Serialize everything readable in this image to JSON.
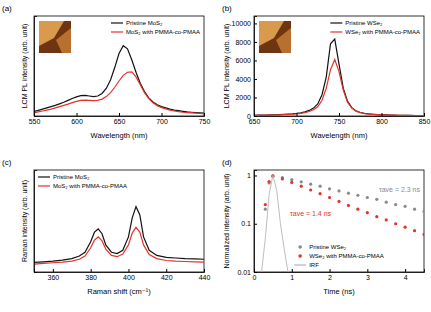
{
  "chart_data": [
    {
      "type": "line",
      "title": "(a)",
      "x_label": "Wavelength (nm)",
      "y_label": "LCM PL intensity (arb. unit)",
      "x": [
        550,
        555,
        560,
        565,
        570,
        575,
        580,
        585,
        590,
        595,
        600,
        605,
        610,
        615,
        620,
        625,
        630,
        635,
        640,
        645,
        650,
        655,
        660,
        665,
        670,
        675,
        680,
        685,
        690,
        695,
        700,
        705,
        710,
        715,
        720,
        725,
        730,
        735,
        740,
        745,
        750
      ],
      "series": [
        {
          "name": "Pristine MoS₂",
          "color": "#111111",
          "values": [
            15,
            18,
            22,
            26,
            30,
            34,
            39,
            44,
            50,
            56,
            61,
            65,
            66,
            64,
            62,
            64,
            72,
            88,
            115,
            155,
            200,
            225,
            215,
            180,
            140,
            105,
            78,
            58,
            45,
            36,
            30,
            26,
            22,
            19,
            17,
            15,
            13,
            12,
            11,
            10,
            9
          ]
        },
        {
          "name": "MoS₂ with PMMA-co-PMAA",
          "color": "#e5332a",
          "values": [
            10,
            13,
            16,
            19,
            22,
            26,
            30,
            34,
            38,
            43,
            47,
            50,
            51,
            50,
            49,
            50,
            54,
            62,
            75,
            92,
            112,
            130,
            140,
            141,
            125,
            100,
            75,
            56,
            42,
            33,
            27,
            23,
            19,
            16,
            14,
            12,
            11,
            10,
            9,
            8,
            7
          ]
        }
      ],
      "xlim": [
        550,
        750
      ],
      "xticks": [
        550,
        600,
        650,
        700,
        750
      ],
      "ylim": [
        0,
        320
      ],
      "tick_labels": "x",
      "legend": "upper right"
    },
    {
      "type": "line",
      "title": "(b)",
      "x_label": "Wavelength (nm)",
      "y_label": "LCM PL intensity (arb. unit)",
      "x": [
        650,
        655,
        660,
        665,
        670,
        675,
        680,
        685,
        690,
        695,
        700,
        705,
        710,
        715,
        720,
        725,
        730,
        735,
        740,
        745,
        750,
        755,
        760,
        765,
        770,
        775,
        780,
        785,
        790,
        795,
        800,
        805,
        810,
        815,
        820,
        825,
        830,
        835,
        840,
        845,
        850
      ],
      "series": [
        {
          "name": "Pristine WSe₂",
          "color": "#111111",
          "values": [
            80,
            90,
            100,
            110,
            120,
            135,
            150,
            170,
            195,
            230,
            280,
            350,
            450,
            600,
            850,
            1300,
            2300,
            4200,
            7800,
            8300,
            5600,
            3000,
            1600,
            900,
            550,
            380,
            280,
            220,
            180,
            150,
            130,
            115,
            100,
            90,
            80,
            70,
            65,
            60,
            55,
            50,
            45
          ]
        },
        {
          "name": "WSe₂ with PMMA-co-PMAA",
          "color": "#e5332a",
          "values": [
            60,
            70,
            80,
            90,
            100,
            110,
            125,
            140,
            160,
            190,
            230,
            290,
            370,
            490,
            680,
            1000,
            1700,
            3000,
            5000,
            6100,
            4800,
            2800,
            1500,
            850,
            520,
            360,
            260,
            200,
            165,
            140,
            120,
            105,
            92,
            82,
            72,
            65,
            58,
            53,
            48,
            44,
            40
          ]
        }
      ],
      "xlim": [
        650,
        850
      ],
      "xticks": [
        650,
        700,
        750,
        800,
        850
      ],
      "ylim": [
        0,
        10800
      ],
      "yticks": [
        0,
        2000,
        4000,
        6000,
        8000,
        10000
      ],
      "legend": "upper right"
    },
    {
      "type": "line",
      "title": "(c)",
      "x_label": "Raman shift (cm⁻¹)",
      "y_label": "Raman intensity (arb. unit)",
      "x": [
        350,
        355,
        360,
        365,
        370,
        374,
        377,
        380,
        382,
        384,
        386,
        388,
        391,
        394,
        397,
        400,
        402,
        404,
        406,
        408,
        411,
        415,
        420,
        425,
        430,
        435,
        440
      ],
      "series": [
        {
          "name": "Pristine MoS₂",
          "color": "#111111",
          "values": [
            30,
            32,
            34,
            37,
            42,
            50,
            62,
            95,
            125,
            135,
            120,
            85,
            62,
            58,
            68,
            110,
            170,
            205,
            180,
            110,
            68,
            52,
            46,
            44,
            42,
            41,
            40
          ]
        },
        {
          "name": "MoS₂ with PMMA-co-PMAA",
          "color": "#e5332a",
          "values": [
            25,
            27,
            29,
            31,
            34,
            40,
            50,
            76,
            100,
            110,
            98,
            72,
            52,
            48,
            56,
            85,
            122,
            140,
            125,
            85,
            55,
            42,
            36,
            34,
            33,
            32,
            31
          ]
        }
      ],
      "xlim": [
        350,
        440
      ],
      "xticks": [
        360,
        380,
        400,
        420,
        440
      ],
      "ylim": [
        0,
        320
      ],
      "tick_labels": "x",
      "legend": "upper left"
    },
    {
      "type": "line",
      "title": "(d)",
      "x_label": "Time (ns)",
      "y_label": "Normalized intensity (arb. unit)",
      "log": "y",
      "series": [
        {
          "name": "Pristine WSe₂",
          "color": "#8a8a8a",
          "type": "scatter",
          "marker": "circle",
          "x": [
            0.3,
            0.4,
            0.5,
            0.75,
            1,
            1.25,
            1.5,
            1.75,
            2,
            2.25,
            2.5,
            2.75,
            3,
            3.25,
            3.5,
            3.75,
            4,
            4.25,
            4.5
          ],
          "values": [
            0.2,
            0.7,
            0.97,
            0.9,
            0.82,
            0.74,
            0.66,
            0.6,
            0.53,
            0.48,
            0.43,
            0.39,
            0.35,
            0.32,
            0.28,
            0.25,
            0.23,
            0.2,
            0.18
          ]
        },
        {
          "name": "WSe₂ with PMMA-co-PMAA",
          "color": "#e5332a",
          "type": "scatter",
          "marker": "circle",
          "x": [
            0.3,
            0.4,
            0.5,
            0.75,
            1,
            1.25,
            1.5,
            1.75,
            2,
            2.25,
            2.5,
            2.75,
            3,
            3.25,
            3.5,
            3.75,
            4,
            4.25,
            4.5
          ],
          "values": [
            0.25,
            0.75,
            0.98,
            0.85,
            0.72,
            0.6,
            0.5,
            0.42,
            0.35,
            0.29,
            0.24,
            0.2,
            0.17,
            0.14,
            0.12,
            0.1,
            0.085,
            0.072,
            0.06
          ]
        },
        {
          "name": "IRF",
          "color": "#b5b5b5",
          "type": "line",
          "x": [
            0.2,
            0.3,
            0.4,
            0.5,
            0.6,
            0.7,
            0.8,
            0.9
          ],
          "values": [
            0.01,
            0.05,
            0.4,
            1,
            0.5,
            0.1,
            0.03,
            0.01
          ]
        }
      ],
      "annotations": [
        {
          "text": "τave = 2.3 ns",
          "color": "#8a8a8a"
        },
        {
          "text": "τave = 1.4 ns",
          "color": "#e5332a"
        }
      ],
      "xlim": [
        0,
        4.5
      ],
      "xticks": [
        0,
        1,
        2,
        3,
        4
      ],
      "ylim": [
        0.01,
        1.3
      ],
      "yticks": [
        0.01,
        0.1,
        1
      ],
      "legend": "lower center"
    }
  ]
}
